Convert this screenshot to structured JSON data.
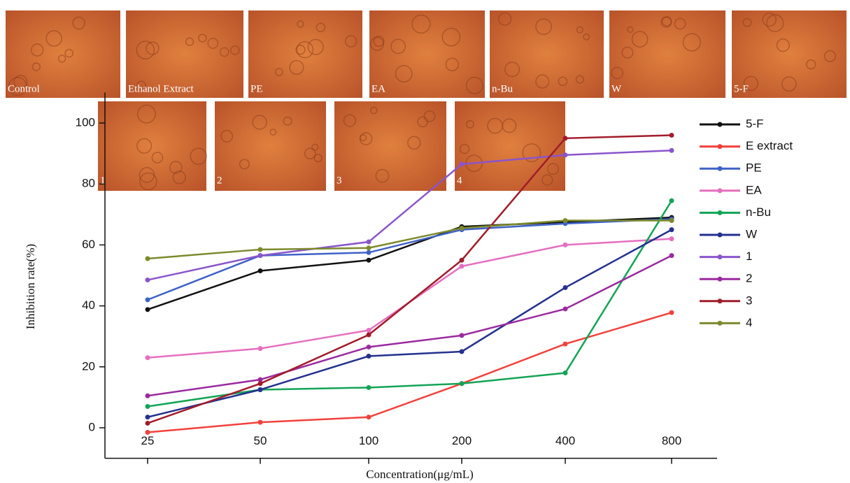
{
  "images": [
    "Control",
    "Ethanol Extract",
    "PE",
    "EA",
    "n-Bu",
    "W",
    "5-F",
    "1",
    "2",
    "3",
    "4"
  ],
  "chart_data": {
    "type": "line",
    "x_label": "Concentration(μg/mL)",
    "y_label": "Inhibition rate(%)",
    "categories": [
      "25",
      "50",
      "100",
      "200",
      "400",
      "800"
    ],
    "ylim": [
      -10,
      110
    ],
    "yticks": [
      0,
      20,
      40,
      60,
      80,
      100
    ],
    "series": [
      {
        "name": "5-F",
        "color": "#111111",
        "values": [
          38.8,
          51.5,
          55,
          66,
          67.5,
          69
        ]
      },
      {
        "name": "E extract",
        "color": "#f2413a",
        "values": [
          -1.5,
          1.8,
          3.5,
          14.5,
          27.5,
          37.8
        ]
      },
      {
        "name": "PE",
        "color": "#3f62c8",
        "values": [
          42,
          56.5,
          57.5,
          65,
          67,
          68.5
        ]
      },
      {
        "name": "EA",
        "color": "#e56fc0",
        "values": [
          23,
          26,
          32,
          53,
          60,
          62
        ]
      },
      {
        "name": "n-Bu",
        "color": "#13a456",
        "values": [
          7,
          12.5,
          13.2,
          14.5,
          18,
          74.5
        ]
      },
      {
        "name": "W",
        "color": "#24328f",
        "values": [
          3.5,
          12.5,
          23.5,
          25,
          46,
          65
        ]
      },
      {
        "name": "1",
        "color": "#8a55cc",
        "values": [
          48.5,
          56.5,
          61,
          86.5,
          89.5,
          91
        ]
      },
      {
        "name": "2",
        "color": "#9b2aa0",
        "values": [
          10.5,
          15.8,
          26.5,
          30.3,
          39,
          56.5
        ]
      },
      {
        "name": "3",
        "color": "#a11c2a",
        "values": [
          1.5,
          14.5,
          30.5,
          55,
          95,
          96
        ]
      },
      {
        "name": "4",
        "color": "#7d8a2c",
        "values": [
          55.5,
          58.5,
          59,
          65.5,
          68,
          68
        ]
      }
    ]
  }
}
